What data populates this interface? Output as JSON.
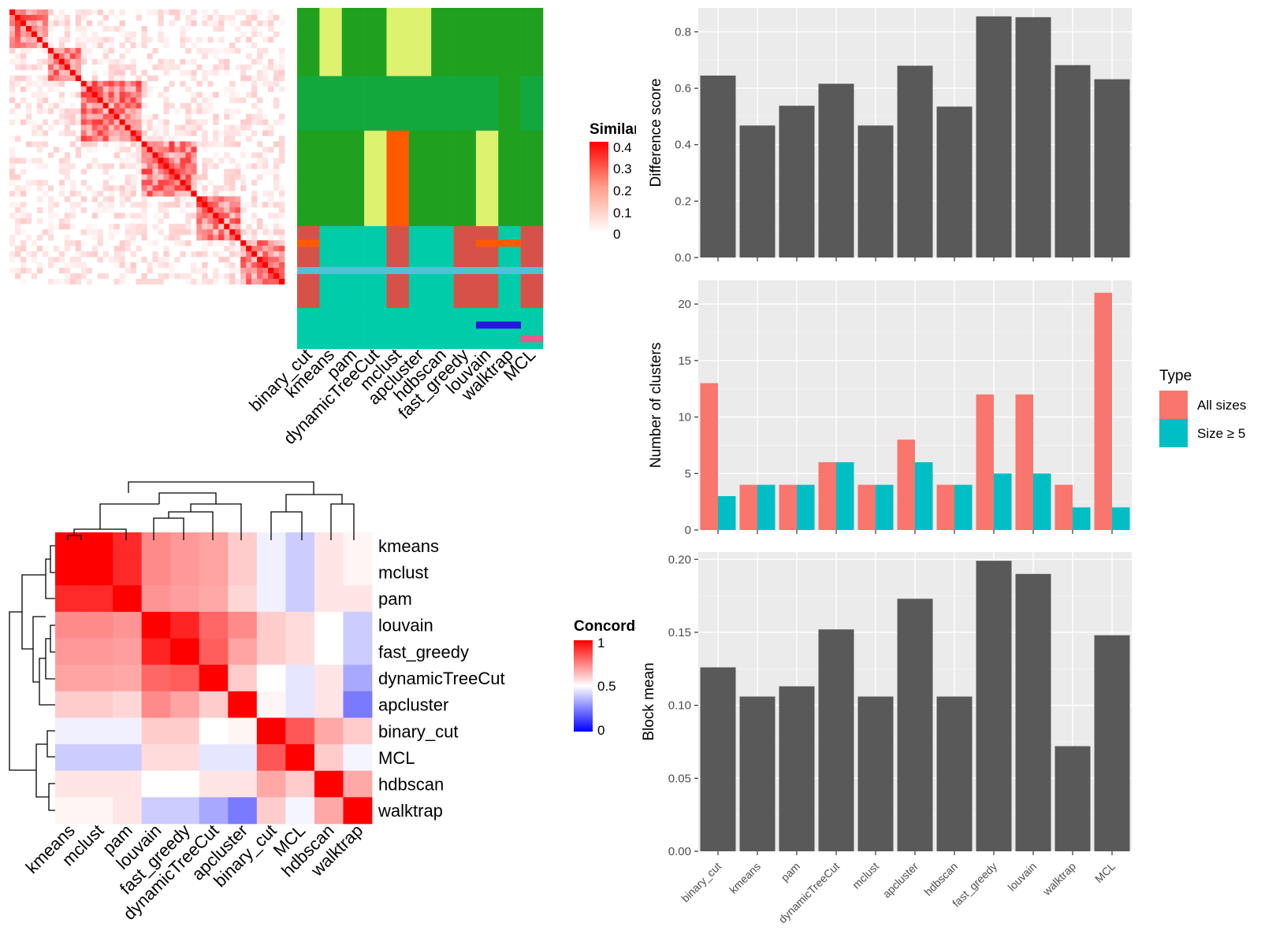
{
  "methods": [
    "binary_cut",
    "kmeans",
    "pam",
    "dynamicTreeCut",
    "mclust",
    "apcluster",
    "hdbscan",
    "fast_greedy",
    "louvain",
    "walktrap",
    "MCL"
  ],
  "similarity_legend": {
    "title": "Similarity",
    "ticks": [
      "0.4",
      "0.3",
      "0.2",
      "0.1",
      "0"
    ]
  },
  "concordance_legend": {
    "title": "Concordance",
    "ticks": [
      "1",
      "0.5",
      "0"
    ]
  },
  "concordance_heatmap": {
    "row_order": [
      "kmeans",
      "mclust",
      "pam",
      "louvain",
      "fast_greedy",
      "dynamicTreeCut",
      "apcluster",
      "binary_cut",
      "MCL",
      "hdbscan",
      "walktrap"
    ],
    "col_order": [
      "kmeans",
      "mclust",
      "pam",
      "louvain",
      "fast_greedy",
      "dynamicTreeCut",
      "apcluster",
      "binary_cut",
      "MCL",
      "hdbscan",
      "walktrap"
    ],
    "values": [
      [
        1.0,
        1.0,
        0.92,
        0.73,
        0.7,
        0.68,
        0.6,
        0.47,
        0.4,
        0.55,
        0.52
      ],
      [
        1.0,
        1.0,
        0.92,
        0.73,
        0.7,
        0.68,
        0.6,
        0.47,
        0.4,
        0.55,
        0.52
      ],
      [
        0.92,
        0.92,
        1.0,
        0.71,
        0.69,
        0.67,
        0.58,
        0.47,
        0.4,
        0.55,
        0.55
      ],
      [
        0.73,
        0.73,
        0.71,
        1.0,
        0.93,
        0.8,
        0.73,
        0.6,
        0.57,
        0.5,
        0.4
      ],
      [
        0.7,
        0.7,
        0.69,
        0.93,
        1.0,
        0.82,
        0.68,
        0.6,
        0.57,
        0.5,
        0.4
      ],
      [
        0.68,
        0.68,
        0.67,
        0.8,
        0.82,
        1.0,
        0.6,
        0.5,
        0.45,
        0.55,
        0.33
      ],
      [
        0.6,
        0.6,
        0.58,
        0.73,
        0.68,
        0.6,
        1.0,
        0.52,
        0.45,
        0.55,
        0.24
      ],
      [
        0.47,
        0.47,
        0.47,
        0.6,
        0.6,
        0.5,
        0.52,
        1.0,
        0.83,
        0.67,
        0.6
      ],
      [
        0.4,
        0.4,
        0.4,
        0.57,
        0.57,
        0.45,
        0.45,
        0.83,
        1.0,
        0.6,
        0.48
      ],
      [
        0.55,
        0.55,
        0.55,
        0.5,
        0.5,
        0.55,
        0.55,
        0.67,
        0.6,
        1.0,
        0.67
      ],
      [
        0.52,
        0.52,
        0.55,
        0.4,
        0.4,
        0.33,
        0.24,
        0.6,
        0.48,
        0.67,
        1.0
      ]
    ]
  },
  "chart_data": [
    {
      "type": "bar",
      "categories": [
        "binary_cut",
        "kmeans",
        "pam",
        "dynamicTreeCut",
        "mclust",
        "apcluster",
        "hdbscan",
        "fast_greedy",
        "louvain",
        "walktrap",
        "MCL"
      ],
      "values": [
        0.645,
        0.468,
        0.538,
        0.616,
        0.468,
        0.68,
        0.535,
        0.855,
        0.852,
        0.682,
        0.632
      ],
      "ylabel": "Difference score",
      "ylim": [
        0,
        0.885
      ],
      "yticks": [
        "0.0",
        "0.2",
        "0.4",
        "0.6",
        "0.8"
      ],
      "grid": true
    },
    {
      "type": "bar",
      "categories": [
        "binary_cut",
        "kmeans",
        "pam",
        "dynamicTreeCut",
        "mclust",
        "apcluster",
        "hdbscan",
        "fast_greedy",
        "louvain",
        "walktrap",
        "MCL"
      ],
      "series": [
        {
          "name": "All sizes",
          "color": "#F8766D",
          "values": [
            13,
            4,
            4,
            6,
            4,
            8,
            4,
            12,
            12,
            4,
            21
          ]
        },
        {
          "name": "Size ≥ 5",
          "color": "#00BFC4",
          "values": [
            3,
            4,
            4,
            6,
            4,
            6,
            4,
            5,
            5,
            2,
            2
          ]
        }
      ],
      "ylabel": "Number of clusters",
      "ylim": [
        0,
        22.1
      ],
      "yticks": [
        "0",
        "5",
        "10",
        "15",
        "20"
      ],
      "legend_title": "Type",
      "legend_position": "right",
      "grid": true
    },
    {
      "type": "bar",
      "categories": [
        "binary_cut",
        "kmeans",
        "pam",
        "dynamicTreeCut",
        "mclust",
        "apcluster",
        "hdbscan",
        "fast_greedy",
        "louvain",
        "walktrap",
        "MCL"
      ],
      "values": [
        0.126,
        0.106,
        0.113,
        0.152,
        0.106,
        0.173,
        0.106,
        0.199,
        0.19,
        0.072,
        0.148
      ],
      "ylabel": "Block mean",
      "ylim": [
        0,
        0.205
      ],
      "yticks": [
        "0.00",
        "0.05",
        "0.10",
        "0.15",
        "0.20"
      ],
      "grid": true
    }
  ],
  "colors": {
    "bar": "#595959",
    "panel": "#EBEBEB",
    "grid": "#FFFFFF",
    "sim_high": "#FF0000",
    "conc_high": "#FF0000",
    "conc_mid": "#FFFFFF",
    "conc_low": "#0000FF"
  }
}
